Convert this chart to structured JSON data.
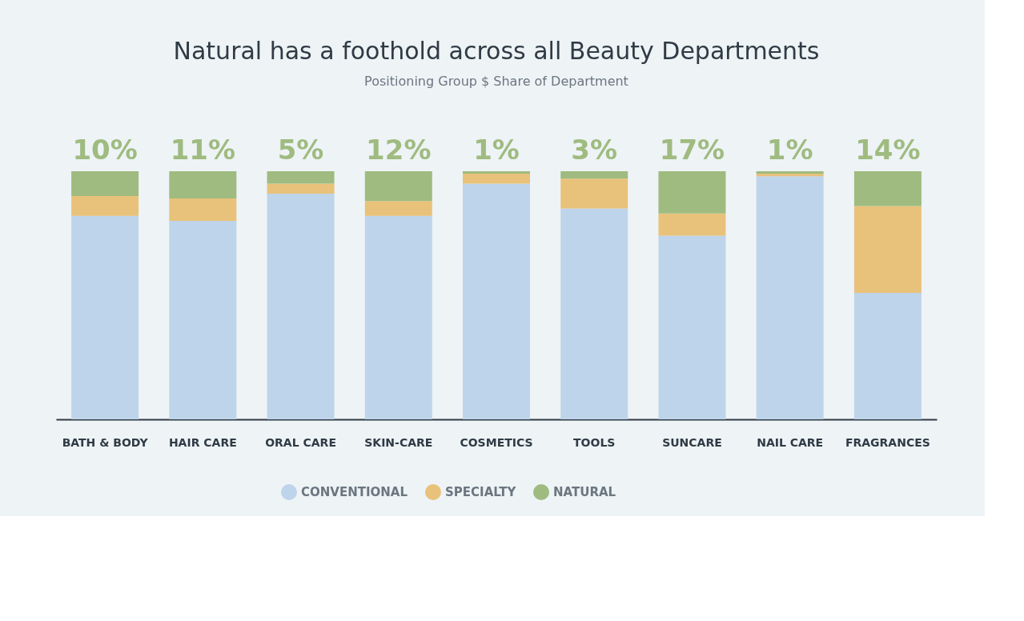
{
  "chart_data": {
    "type": "bar",
    "stacked": true,
    "title": "Natural has a foothold across all Beauty Departments",
    "subtitle": "Positioning Group $ Share of Department",
    "categories": [
      "BATH & BODY",
      "HAIR CARE",
      "ORAL CARE",
      "SKIN-CARE",
      "COSMETICS",
      "TOOLS",
      "SUNCARE",
      "NAIL CARE",
      "FRAGRANCES"
    ],
    "series": [
      {
        "name": "CONVENTIONAL",
        "color": "#bed4ea",
        "values": [
          82,
          80,
          91,
          82,
          95,
          85,
          74,
          98,
          51
        ]
      },
      {
        "name": "SPECIALTY",
        "color": "#e8c27a",
        "values": [
          8,
          9,
          4,
          6,
          4,
          12,
          9,
          1,
          35
        ]
      },
      {
        "name": "NATURAL",
        "color": "#9fbb80",
        "values": [
          10,
          11,
          5,
          12,
          1,
          3,
          17,
          1,
          14
        ],
        "value_labels": [
          "10%",
          "11%",
          "5%",
          "12%",
          "1%",
          "3%",
          "17%",
          "1%",
          "14%"
        ]
      }
    ],
    "tick_labels": "x",
    "legend": "bottom",
    "grid": false
  }
}
